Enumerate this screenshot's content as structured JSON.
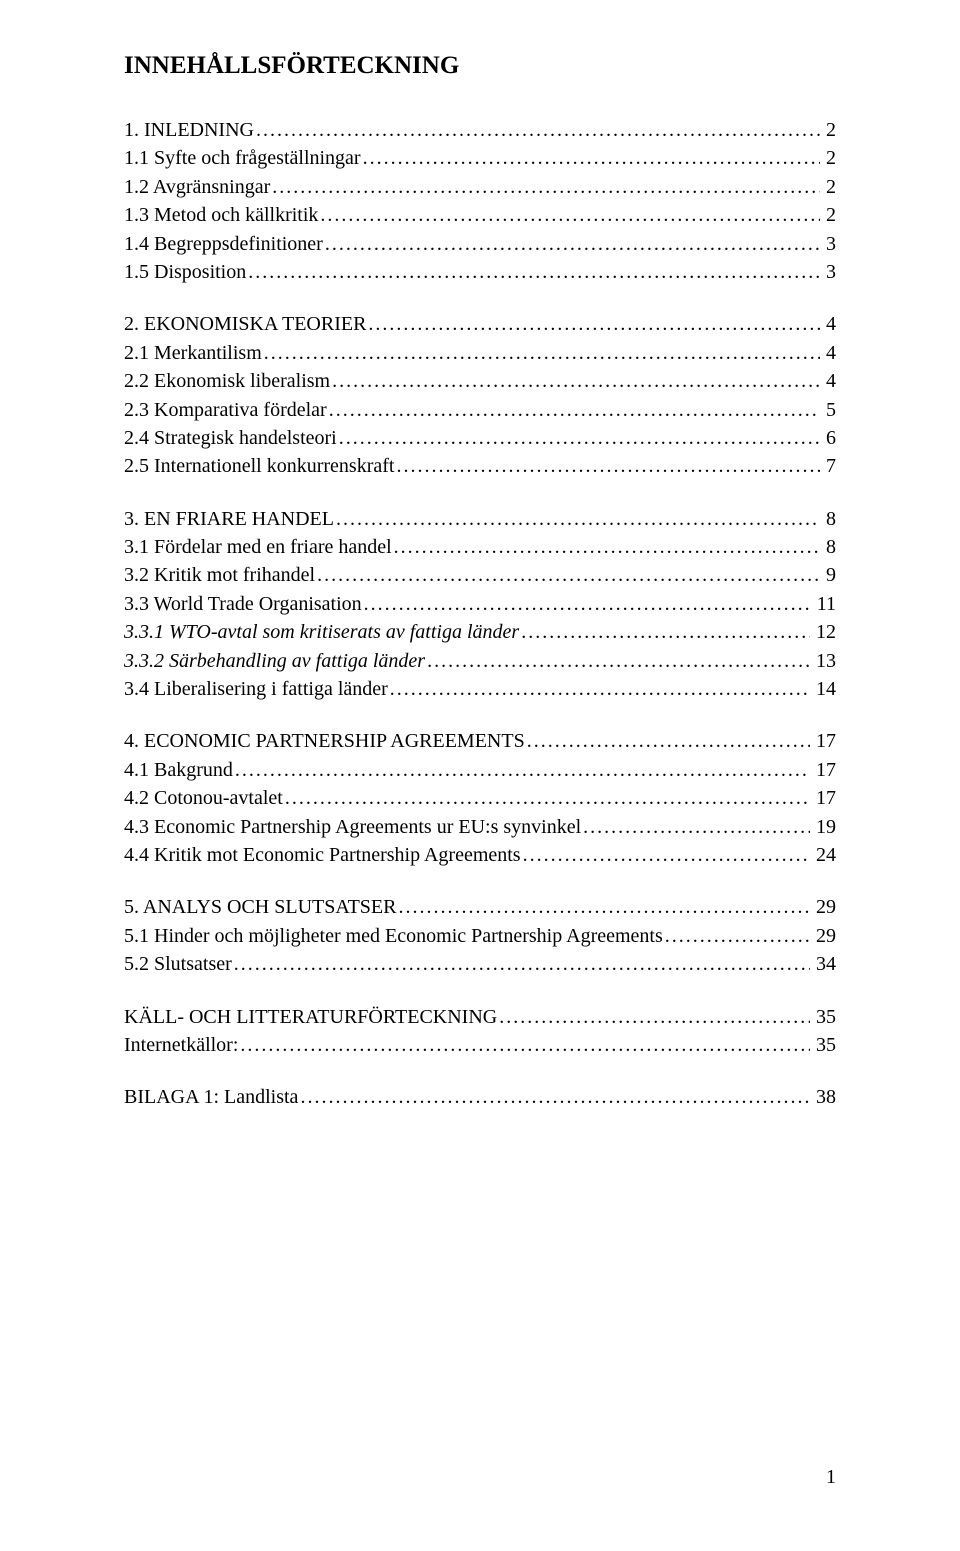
{
  "title": "INNEHÅLLSFÖRTECKNING",
  "page_number": "1",
  "toc": [
    [
      {
        "label": "1. INLEDNING",
        "page": "2",
        "italic": false
      },
      {
        "label": "1.1 Syfte och frågeställningar",
        "page": "2",
        "italic": false
      },
      {
        "label": "1.2 Avgränsningar",
        "page": "2",
        "italic": false
      },
      {
        "label": "1.3 Metod och källkritik",
        "page": "2",
        "italic": false
      },
      {
        "label": "1.4 Begreppsdefinitioner",
        "page": "3",
        "italic": false
      },
      {
        "label": "1.5 Disposition",
        "page": "3",
        "italic": false
      }
    ],
    [
      {
        "label": "2. EKONOMISKA TEORIER",
        "page": "4",
        "italic": false
      },
      {
        "label": "2.1 Merkantilism",
        "page": "4",
        "italic": false
      },
      {
        "label": "2.2 Ekonomisk liberalism",
        "page": "4",
        "italic": false
      },
      {
        "label": "2.3 Komparativa fördelar",
        "page": "5",
        "italic": false
      },
      {
        "label": "2.4 Strategisk handelsteori",
        "page": "6",
        "italic": false
      },
      {
        "label": "2.5 Internationell konkurrenskraft",
        "page": "7",
        "italic": false
      }
    ],
    [
      {
        "label": "3. EN FRIARE HANDEL",
        "page": "8",
        "italic": false
      },
      {
        "label": "3.1 Fördelar med en friare handel",
        "page": "8",
        "italic": false
      },
      {
        "label": "3.2 Kritik mot frihandel",
        "page": "9",
        "italic": false
      },
      {
        "label": "3.3 World Trade Organisation",
        "page": "11",
        "italic": false
      },
      {
        "label": "3.3.1 WTO-avtal som kritiserats av fattiga länder",
        "page": "12",
        "italic": true
      },
      {
        "label": "3.3.2 Särbehandling av fattiga länder",
        "page": "13",
        "italic": true
      },
      {
        "label": "3.4 Liberalisering i fattiga länder",
        "page": "14",
        "italic": false
      }
    ],
    [
      {
        "label": "4. ECONOMIC PARTNERSHIP AGREEMENTS",
        "page": "17",
        "italic": false
      },
      {
        "label": "4.1 Bakgrund",
        "page": "17",
        "italic": false
      },
      {
        "label": "4.2 Cotonou-avtalet",
        "page": "17",
        "italic": false
      },
      {
        "label": "4.3 Economic Partnership Agreements ur EU:s synvinkel",
        "page": "19",
        "italic": false
      },
      {
        "label": "4.4 Kritik mot Economic Partnership Agreements",
        "page": "24",
        "italic": false
      }
    ],
    [
      {
        "label": "5. ANALYS OCH SLUTSATSER",
        "page": "29",
        "italic": false
      },
      {
        "label": "5.1 Hinder och möjligheter med Economic Partnership Agreements",
        "page": "29",
        "italic": false
      },
      {
        "label": "5.2 Slutsatser",
        "page": "34",
        "italic": false
      }
    ],
    [
      {
        "label": "KÄLL- OCH LITTERATURFÖRTECKNING",
        "page": "35",
        "italic": false
      },
      {
        "label": "Internetkällor:",
        "page": "35",
        "italic": false
      }
    ],
    [
      {
        "label": "BILAGA 1: Landlista",
        "page": "38",
        "italic": false
      }
    ]
  ]
}
